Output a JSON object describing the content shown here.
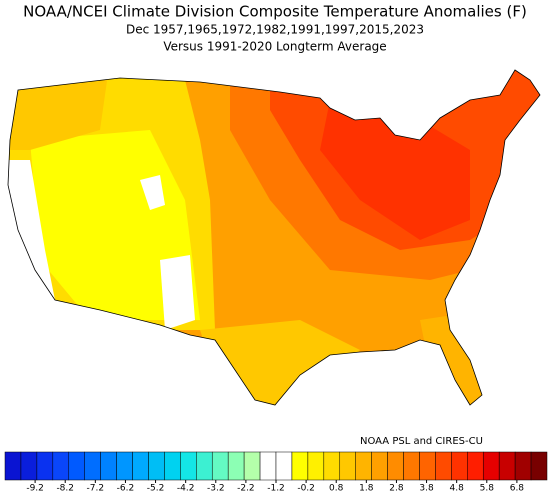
{
  "header": {
    "title": "NOAA/NCEI Climate Division Composite Temperature Anomalies (F)",
    "subtitle": "Dec  1957,1965,1972,1982,1991,1997,2015,2023",
    "baseline": "Versus 1991-2020 Longterm Average"
  },
  "credit": "NOAA PSL and CIRES-CU",
  "colorbar": {
    "labels": [
      "-9.2",
      "-8.2",
      "-7.2",
      "-6.2",
      "-5.2",
      "-4.2",
      "-3.2",
      "-2.2",
      "-1.2",
      "-0.2",
      "0.8",
      "1.8",
      "2.8",
      "3.8",
      "4.8",
      "5.8",
      "6.8"
    ],
    "colors": [
      "#0a14d2",
      "#0a1edc",
      "#0a32f0",
      "#0a46fa",
      "#005aff",
      "#006eff",
      "#0082ff",
      "#0096ff",
      "#00aaff",
      "#00bef5",
      "#00d2f0",
      "#14e6e6",
      "#3cf0d2",
      "#64fac3",
      "#8cffb4",
      "#b4ffaa",
      "#ffffff",
      "#ffffff",
      "#ffff00",
      "#fff000",
      "#ffdc00",
      "#ffc800",
      "#ffb400",
      "#ffa000",
      "#ff8c00",
      "#ff7800",
      "#ff6400",
      "#ff4b00",
      "#ff3200",
      "#ff1e00",
      "#e60000",
      "#c80000",
      "#a00000",
      "#780000"
    ]
  }
}
